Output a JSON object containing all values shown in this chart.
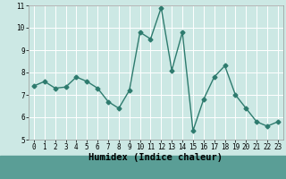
{
  "x": [
    0,
    1,
    2,
    3,
    4,
    5,
    6,
    7,
    8,
    9,
    10,
    11,
    12,
    13,
    14,
    15,
    16,
    17,
    18,
    19,
    20,
    21,
    22,
    23
  ],
  "y": [
    7.4,
    7.6,
    7.3,
    7.35,
    7.8,
    7.6,
    7.3,
    6.7,
    6.4,
    7.2,
    9.8,
    9.5,
    10.9,
    8.1,
    9.8,
    5.4,
    6.8,
    7.8,
    8.3,
    7.0,
    6.4,
    5.8,
    5.6,
    5.8
  ],
  "line_color": "#2e7b6e",
  "marker": "D",
  "marker_size": 2.5,
  "line_width": 1.0,
  "xlabel": "Humidex (Indice chaleur)",
  "xlim": [
    -0.5,
    23.5
  ],
  "ylim": [
    5,
    11
  ],
  "yticks": [
    5,
    6,
    7,
    8,
    9,
    10,
    11
  ],
  "xticks": [
    0,
    1,
    2,
    3,
    4,
    5,
    6,
    7,
    8,
    9,
    10,
    11,
    12,
    13,
    14,
    15,
    16,
    17,
    18,
    19,
    20,
    21,
    22,
    23
  ],
  "bg_color": "#cce8e4",
  "bottom_bar_color": "#5a9e96",
  "grid_color": "#ffffff",
  "tick_fontsize": 5.5,
  "label_fontsize": 7.5
}
